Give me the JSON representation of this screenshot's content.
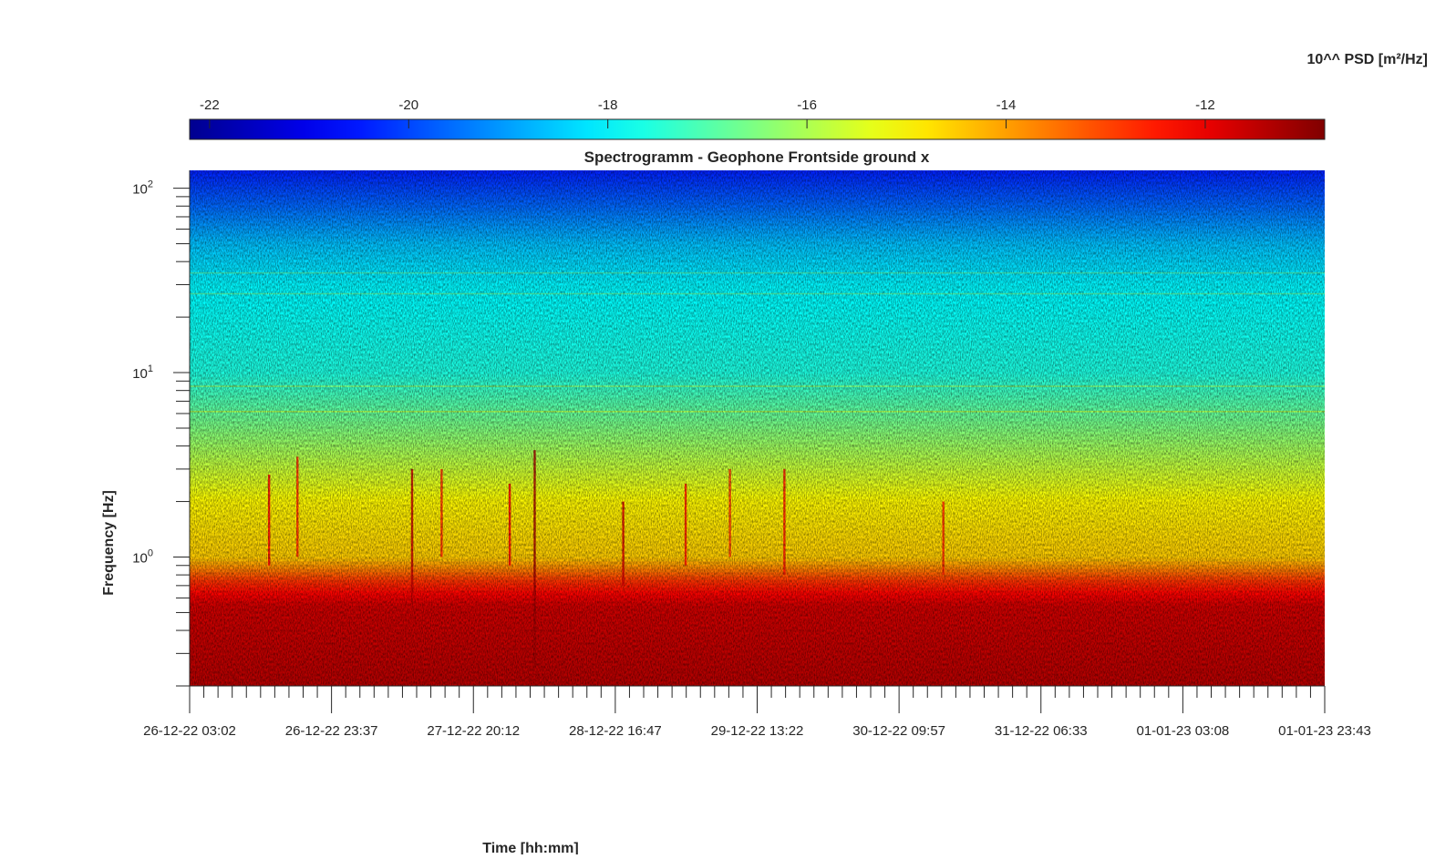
{
  "chart_data": {
    "type": "heatmap",
    "title": "Spectrogramm - Geophone Frontside ground x",
    "xlabel": "Time [hh:mm]",
    "ylabel": "Frequency [Hz]",
    "colorbar_label": "10^^ PSD [m²/Hz]",
    "colormap": "jet",
    "colormap_stops": [
      "#00008f",
      "#0000ff",
      "#00ffff",
      "#ffff00",
      "#ff0000",
      "#800000"
    ],
    "y_scale": "log",
    "ylim": [
      0.2,
      125
    ],
    "y_ticks": [
      {
        "value": 1,
        "base": "10",
        "exp": "0"
      },
      {
        "value": 10,
        "base": "10",
        "exp": "1"
      },
      {
        "value": 100,
        "base": "10",
        "exp": "2"
      }
    ],
    "x_ticks": [
      "26-12-22 03:02",
      "26-12-22 23:37",
      "27-12-22 20:12",
      "28-12-22 16:47",
      "29-12-22 13:22",
      "30-12-22 09:57",
      "31-12-22 06:33",
      "01-01-23 03:08",
      "01-01-23 23:43"
    ],
    "clim": [
      -22.2,
      -10.8
    ],
    "colorbar_ticks": [
      "-22",
      "-20",
      "-18",
      "-16",
      "-14",
      "-12"
    ],
    "colorbar_tick_values": [
      -22,
      -20,
      -18,
      -16,
      -14,
      -12
    ],
    "psd_profile": [
      {
        "freq": 0.2,
        "log10_psd": -11.4
      },
      {
        "freq": 0.55,
        "log10_psd": -11.7
      },
      {
        "freq": 0.75,
        "log10_psd": -12.8
      },
      {
        "freq": 1.0,
        "log10_psd": -14.5
      },
      {
        "freq": 2.0,
        "log10_psd": -15.0
      },
      {
        "freq": 5.0,
        "log10_psd": -16.5
      },
      {
        "freq": 10.0,
        "log10_psd": -17.6
      },
      {
        "freq": 30.0,
        "log10_psd": -18.0
      },
      {
        "freq": 50.0,
        "log10_psd": -18.6
      },
      {
        "freq": 80.0,
        "log10_psd": -19.6
      },
      {
        "freq": 125.0,
        "log10_psd": -20.4
      }
    ],
    "grid": false
  }
}
